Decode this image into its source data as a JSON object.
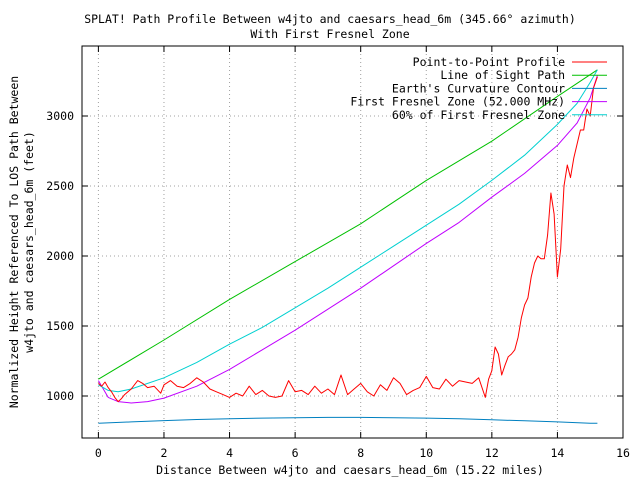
{
  "chart_data": {
    "type": "line",
    "title": "SPLAT! Path Profile Between w4jto and caesars_head_6m (345.66° azimuth)",
    "subtitle": "With First Fresnel Zone",
    "xlabel": "Distance Between w4jto and caesars_head_6m (15.22 miles)",
    "ylabel_lines": [
      "Normalized Height Referenced To LOS Path Between",
      "w4jto and caesars_head_6m (feet)"
    ],
    "xlim": [
      -0.5,
      16
    ],
    "ylim": [
      700,
      3500
    ],
    "x_ticks": [
      0,
      2,
      4,
      6,
      8,
      10,
      12,
      14,
      16
    ],
    "x_tick_labels": [
      "0",
      "2",
      "4",
      "6",
      "8",
      "10",
      "12",
      "14",
      "16"
    ],
    "y_ticks": [
      1000,
      1500,
      2000,
      2500,
      3000
    ],
    "y_tick_labels": [
      "1000",
      "1500",
      "2000",
      "2500",
      "3000"
    ],
    "grid": true,
    "legend_position": "top-right",
    "series": [
      {
        "name": "Point-to-Point Profile",
        "color": "#ff0000",
        "x": [
          0,
          0.1,
          0.2,
          0.3,
          0.4,
          0.5,
          0.6,
          0.7,
          0.8,
          1.0,
          1.2,
          1.35,
          1.5,
          1.7,
          1.9,
          2.0,
          2.2,
          2.4,
          2.6,
          2.8,
          3.0,
          3.2,
          3.4,
          3.6,
          3.8,
          4.0,
          4.2,
          4.4,
          4.6,
          4.8,
          5.0,
          5.2,
          5.4,
          5.6,
          5.8,
          6.0,
          6.2,
          6.4,
          6.6,
          6.8,
          7.0,
          7.2,
          7.4,
          7.6,
          7.8,
          8.0,
          8.2,
          8.4,
          8.6,
          8.8,
          9.0,
          9.2,
          9.4,
          9.6,
          9.8,
          10.0,
          10.2,
          10.4,
          10.6,
          10.8,
          11.0,
          11.2,
          11.4,
          11.6,
          11.8,
          11.9,
          12.0,
          12.1,
          12.2,
          12.3,
          12.4,
          12.5,
          12.6,
          12.7,
          12.8,
          12.9,
          13.0,
          13.1,
          13.2,
          13.3,
          13.4,
          13.5,
          13.6,
          13.7,
          13.8,
          13.9,
          14.0,
          14.1,
          14.2,
          14.3,
          14.4,
          14.5,
          14.6,
          14.7,
          14.8,
          14.9,
          15.0,
          15.1,
          15.22
        ],
        "y": [
          1090,
          1070,
          1100,
          1060,
          1030,
          990,
          960,
          980,
          1010,
          1050,
          1110,
          1090,
          1060,
          1070,
          1020,
          1080,
          1110,
          1070,
          1060,
          1090,
          1130,
          1100,
          1050,
          1030,
          1010,
          990,
          1020,
          1000,
          1070,
          1010,
          1040,
          1000,
          990,
          1000,
          1110,
          1030,
          1040,
          1010,
          1070,
          1020,
          1050,
          1010,
          1150,
          1010,
          1050,
          1090,
          1030,
          1000,
          1080,
          1040,
          1130,
          1090,
          1010,
          1040,
          1060,
          1140,
          1060,
          1050,
          1120,
          1070,
          1110,
          1100,
          1090,
          1130,
          990,
          1120,
          1180,
          1350,
          1300,
          1150,
          1220,
          1280,
          1300,
          1330,
          1420,
          1560,
          1650,
          1700,
          1850,
          1950,
          2000,
          1980,
          1980,
          2150,
          2450,
          2300,
          1850,
          2050,
          2500,
          2650,
          2560,
          2700,
          2800,
          2900,
          2900,
          3050,
          3000,
          3200,
          3280
        ]
      },
      {
        "name": "Line of Sight Path",
        "color": "#00c000",
        "x": [
          0,
          2,
          4,
          6,
          8,
          10,
          12,
          14,
          15.22
        ],
        "y": [
          1120,
          1400,
          1690,
          1960,
          2230,
          2540,
          2820,
          3140,
          3330
        ]
      },
      {
        "name": "Earth's Curvature Contour",
        "color": "#0080c0",
        "x": [
          0,
          1,
          2,
          3,
          4,
          5,
          6,
          7,
          8,
          9,
          10,
          11,
          12,
          13,
          14,
          15,
          15.22
        ],
        "y": [
          805,
          815,
          824,
          832,
          838,
          842,
          845,
          847,
          847,
          845,
          842,
          837,
          830,
          823,
          815,
          806,
          805
        ]
      },
      {
        "name": "First Fresnel Zone (52.000 MHz)",
        "color": "#c000ff",
        "x": [
          0,
          0.3,
          0.6,
          1.0,
          1.5,
          2.0,
          3.0,
          4.0,
          5.0,
          6.0,
          7.0,
          8.0,
          9.0,
          10.0,
          11.0,
          12.0,
          13.0,
          14.0,
          14.6,
          15.0,
          15.22
        ],
        "y": [
          1110,
          990,
          960,
          950,
          960,
          985,
          1070,
          1190,
          1330,
          1470,
          1620,
          1770,
          1930,
          2090,
          2240,
          2420,
          2590,
          2790,
          2950,
          3130,
          3290
        ]
      },
      {
        "name": "60% of First Fresnel Zone",
        "color": "#00d0d0",
        "x": [
          0,
          0.3,
          0.6,
          1.0,
          2.0,
          3.0,
          4.0,
          5.0,
          6.0,
          7.0,
          8.0,
          9.0,
          10.0,
          11.0,
          12.0,
          13.0,
          14.0,
          14.6,
          15.0,
          15.22
        ],
        "y": [
          1080,
          1040,
          1030,
          1050,
          1130,
          1240,
          1370,
          1490,
          1630,
          1770,
          1920,
          2070,
          2220,
          2370,
          2540,
          2720,
          2940,
          3090,
          3240,
          3330
        ]
      }
    ]
  }
}
